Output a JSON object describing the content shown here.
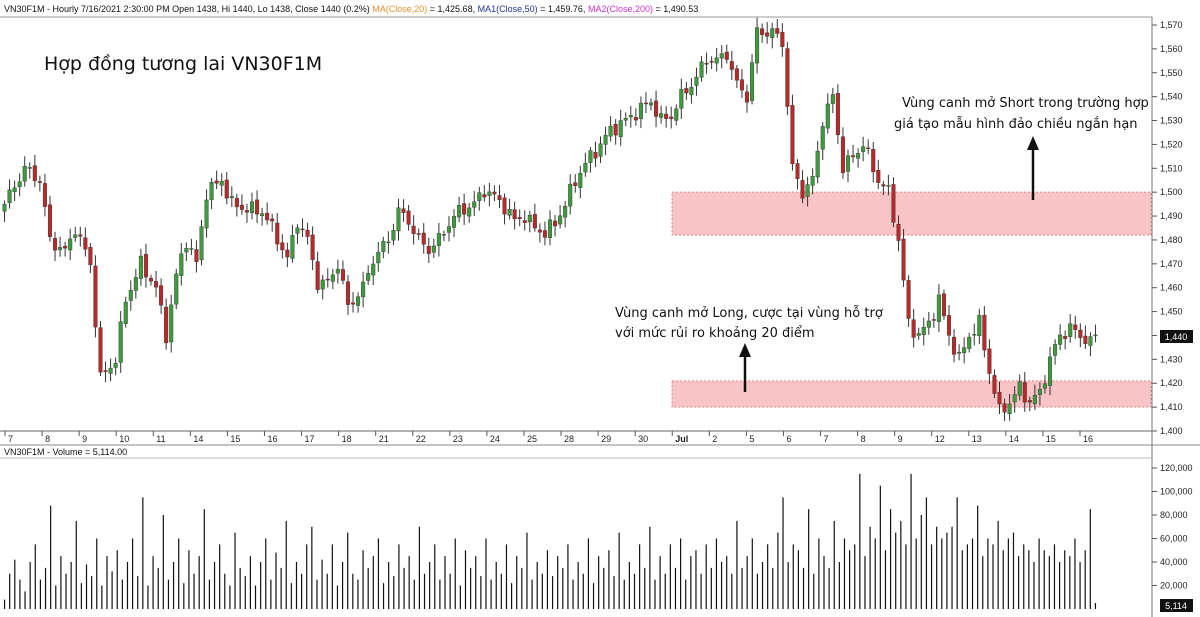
{
  "header": {
    "symbol_info": "VN30F1M - Hourly 7/16/2021 2:30:00 PM Open 1438, Hi 1440, Lo 1438, Close 1440 (0.2%)",
    "ma20_label": "MA(Close,20)",
    "ma20_value": "= 1,425.68,",
    "ma1_label": "MA1(Close,50)",
    "ma1_value": "= 1,459.76,",
    "ma2_label": "MA2(Close,200)",
    "ma2_value": "= 1,490.53",
    "volume_info": "VN30F1M - Volume = 5,114.00"
  },
  "colors": {
    "up": "#3d9b3d",
    "down": "#b82a2a",
    "zone_fill": "#f8c4c6",
    "zone_border": "#e08a8e",
    "ma20": "#e8922e",
    "ma1": "#223399",
    "ma2": "#cc33cc"
  },
  "annotations": {
    "title": "Hợp đồng tương lai VN30F1M",
    "short_line1": "Vùng canh mở Short trong trường hợp",
    "short_line2": "giá tạo mẫu hình đảo chiều ngắn hạn",
    "long_line1": "Vùng canh mở Long, cược tại vùng hỗ trợ",
    "long_line2": "với mức rủi ro khoảng 20 điểm"
  },
  "chart_data": [
    {
      "type": "candlestick",
      "interval": "Hourly",
      "price_axis": {
        "range": [
          1393,
          1574
        ],
        "ticks": [
          "1,400",
          "1,410",
          "1,420",
          "1,430",
          "1,440",
          "1,450",
          "1,460",
          "1,470",
          "1,480",
          "1,490",
          "1,500",
          "1,510",
          "1,520",
          "1,530",
          "1,540",
          "1,550",
          "1,560",
          "1,570"
        ],
        "last_price_label": "1,440"
      },
      "x_axis": {
        "labels": [
          "7",
          "8",
          "9",
          "10",
          "11",
          "14",
          "15",
          "16",
          "17",
          "18",
          "21",
          "22",
          "23",
          "24",
          "25",
          "28",
          "29",
          "30",
          "Jul",
          "2",
          "5",
          "6",
          "7",
          "8",
          "9",
          "12",
          "13",
          "14",
          "15",
          "16"
        ]
      },
      "zones": [
        {
          "name": "short_zone",
          "from": 1482,
          "to": 1500
        },
        {
          "name": "long_zone",
          "from": 1410,
          "to": 1421
        }
      ],
      "anchors": [
        [
          0,
          1495
        ],
        [
          4,
          1510
        ],
        [
          7,
          1505
        ],
        [
          9,
          1480
        ],
        [
          12,
          1475
        ],
        [
          14,
          1485
        ],
        [
          17,
          1470
        ],
        [
          19,
          1422
        ],
        [
          22,
          1430
        ],
        [
          24,
          1455
        ],
        [
          27,
          1470
        ],
        [
          30,
          1460
        ],
        [
          32,
          1440
        ],
        [
          34,
          1465
        ],
        [
          36,
          1480
        ],
        [
          38,
          1470
        ],
        [
          40,
          1500
        ],
        [
          43,
          1505
        ],
        [
          45,
          1495
        ],
        [
          48,
          1493
        ],
        [
          51,
          1492
        ],
        [
          53,
          1485
        ],
        [
          56,
          1472
        ],
        [
          58,
          1488
        ],
        [
          60,
          1480
        ],
        [
          62,
          1462
        ],
        [
          64,
          1462
        ],
        [
          66,
          1470
        ],
        [
          68,
          1452
        ],
        [
          71,
          1460
        ],
        [
          73,
          1472
        ],
        [
          76,
          1480
        ],
        [
          78,
          1492
        ],
        [
          80,
          1488
        ],
        [
          82,
          1480
        ],
        [
          84,
          1476
        ],
        [
          86,
          1480
        ],
        [
          88,
          1487
        ],
        [
          90,
          1492
        ],
        [
          93,
          1495
        ],
        [
          95,
          1501
        ],
        [
          97,
          1498
        ],
        [
          99,
          1494
        ],
        [
          101,
          1488
        ],
        [
          103,
          1490
        ],
        [
          105,
          1485
        ],
        [
          107,
          1483
        ],
        [
          109,
          1487
        ],
        [
          111,
          1495
        ],
        [
          113,
          1505
        ],
        [
          115,
          1512
        ],
        [
          118,
          1520
        ],
        [
          120,
          1526
        ],
        [
          123,
          1530
        ],
        [
          126,
          1535
        ],
        [
          128,
          1538
        ],
        [
          130,
          1530
        ],
        [
          132,
          1532
        ],
        [
          134,
          1540
        ],
        [
          137,
          1548
        ],
        [
          139,
          1556
        ],
        [
          141,
          1555
        ],
        [
          143,
          1558
        ],
        [
          145,
          1545
        ],
        [
          147,
          1540
        ],
        [
          149,
          1567
        ],
        [
          152,
          1567
        ],
        [
          154,
          1563
        ],
        [
          156,
          1510
        ],
        [
          158,
          1500
        ],
        [
          160,
          1505
        ],
        [
          162,
          1530
        ],
        [
          164,
          1540
        ],
        [
          166,
          1510
        ],
        [
          168,
          1515
        ],
        [
          170,
          1520
        ],
        [
          173,
          1505
        ],
        [
          175,
          1500
        ],
        [
          177,
          1480
        ],
        [
          179,
          1445
        ],
        [
          181,
          1440
        ],
        [
          183,
          1445
        ],
        [
          185,
          1455
        ],
        [
          187,
          1440
        ],
        [
          189,
          1430
        ],
        [
          191,
          1440
        ],
        [
          193,
          1445
        ],
        [
          195,
          1425
        ],
        [
          197,
          1408
        ],
        [
          199,
          1412
        ],
        [
          201,
          1418
        ],
        [
          203,
          1412
        ],
        [
          205,
          1416
        ],
        [
          207,
          1430
        ],
        [
          209,
          1440
        ],
        [
          211,
          1443
        ],
        [
          213,
          1440
        ],
        [
          215,
          1437
        ],
        [
          216,
          1440
        ]
      ],
      "last_candle": {
        "open": 1438,
        "high": 1440,
        "low": 1438,
        "close": 1440
      }
    },
    {
      "type": "bar",
      "series": [
        {
          "name": "Volume",
          "last_value": 5114.0
        }
      ],
      "y_axis": {
        "range": [
          0,
          120000
        ],
        "ticks": [
          "20,000",
          "40,000",
          "60,000",
          "80,000",
          "100,000",
          "120,000"
        ],
        "last_value_label": "5,114"
      },
      "values": [
        8000,
        30000,
        42000,
        25000,
        15000,
        40000,
        55000,
        25000,
        35000,
        88000,
        20000,
        45000,
        30000,
        40000,
        75000,
        22000,
        38000,
        28000,
        60000,
        20000,
        45000,
        32000,
        50000,
        25000,
        40000,
        60000,
        28000,
        95000,
        20000,
        45000,
        35000,
        80000,
        25000,
        40000,
        60000,
        22000,
        50000,
        30000,
        45000,
        85000,
        25000,
        40000,
        55000,
        30000,
        20000,
        65000,
        35000,
        28000,
        45000,
        20000,
        40000,
        60000,
        25000,
        48000,
        35000,
        75000,
        22000,
        40000,
        30000,
        55000,
        70000,
        25000,
        42000,
        30000,
        55000,
        20000,
        40000,
        65000,
        30000,
        25000,
        50000,
        35000,
        45000,
        60000,
        22000,
        40000,
        28000,
        55000,
        35000,
        45000,
        25000,
        70000,
        30000,
        40000,
        55000,
        25000,
        45000,
        30000,
        60000,
        20000,
        50000,
        35000,
        45000,
        28000,
        60000,
        25000,
        40000,
        30000,
        55000,
        22000,
        45000,
        35000,
        65000,
        25000,
        40000,
        30000,
        50000,
        28000,
        45000,
        35000,
        55000,
        25000,
        40000,
        30000,
        60000,
        22000,
        45000,
        35000,
        50000,
        28000,
        65000,
        25000,
        40000,
        30000,
        55000,
        35000,
        70000,
        25000,
        45000,
        30000,
        55000,
        35000,
        60000,
        25000,
        45000,
        50000,
        30000,
        55000,
        35000,
        60000,
        40000,
        45000,
        30000,
        75000,
        35000,
        45000,
        60000,
        30000,
        40000,
        55000,
        35000,
        65000,
        95000,
        40000,
        55000,
        50000,
        35000,
        85000,
        30000,
        60000,
        45000,
        35000,
        75000,
        40000,
        60000,
        50000,
        55000,
        115000,
        45000,
        70000,
        60000,
        105000,
        50000,
        85000,
        65000,
        75000,
        55000,
        115000,
        60000,
        80000,
        95000,
        55000,
        70000,
        60000,
        65000,
        70000,
        95000,
        50000,
        55000,
        60000,
        88000,
        45000,
        60000,
        55000,
        75000,
        50000,
        60000,
        65000,
        45000,
        55000,
        50000,
        40000,
        60000,
        50000,
        45000,
        55000,
        40000,
        50000,
        45000,
        60000,
        40000,
        50000,
        85000,
        5114
      ]
    }
  ]
}
